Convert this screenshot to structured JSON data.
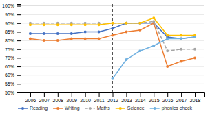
{
  "chart_data": {
    "type": "line",
    "x": [
      2006,
      2007,
      2008,
      2009,
      2010,
      2011,
      2012,
      2013,
      2014,
      2015,
      2016,
      2017,
      2018
    ],
    "series": [
      {
        "name": "Reading",
        "color": "#4472c4",
        "marker": "circle",
        "line_style": "solid",
        "values": [
          84,
          84,
          84,
          84,
          85,
          85,
          87,
          90,
          90,
          90,
          82,
          81,
          82
        ]
      },
      {
        "name": "Writing",
        "color": "#ed7d31",
        "marker": "circle",
        "line_style": "solid",
        "values": [
          81,
          80,
          80,
          81,
          81,
          81,
          83,
          85,
          86,
          90,
          65,
          68,
          70
        ]
      },
      {
        "name": "Maths",
        "color": "#a5a5a5",
        "marker": "circle",
        "line_style": "dashed",
        "values": [
          90,
          90,
          90,
          90,
          90,
          90,
          90,
          90,
          90,
          91,
          74,
          75,
          75
        ]
      },
      {
        "name": "Science",
        "color": "#ffc000",
        "marker": "circle",
        "line_style": "solid",
        "values": [
          89,
          89,
          89,
          89,
          89,
          89,
          90,
          90,
          90,
          93,
          83,
          83,
          83
        ]
      },
      {
        "name": "phonics check",
        "color": "#70b0e0",
        "marker": "circle",
        "line_style": "solid",
        "values": [
          null,
          null,
          null,
          null,
          null,
          null,
          58,
          69,
          74,
          77,
          81,
          81,
          82
        ]
      }
    ],
    "reference_x": 2012,
    "xlim": [
      2005.3,
      2018.7
    ],
    "xticks": [
      2006,
      2007,
      2008,
      2009,
      2010,
      2011,
      2012,
      2013,
      2014,
      2015,
      2016,
      2017,
      2018
    ],
    "ylim": [
      50,
      101
    ],
    "yticks": [
      {
        "value": 50,
        "label": "50%"
      },
      {
        "value": 55,
        "label": "55%"
      },
      {
        "value": 60,
        "label": "60%"
      },
      {
        "value": 65,
        "label": "65%"
      },
      {
        "value": 70,
        "label": "70%"
      },
      {
        "value": 75,
        "label": "75%"
      },
      {
        "value": 80,
        "label": "80%"
      },
      {
        "value": 85,
        "label": "85%"
      },
      {
        "value": 90,
        "label": "90%"
      },
      {
        "value": 95,
        "label": "95%"
      },
      {
        "value": 100,
        "label": "100%"
      }
    ],
    "grid": true,
    "legend": "bottom"
  }
}
